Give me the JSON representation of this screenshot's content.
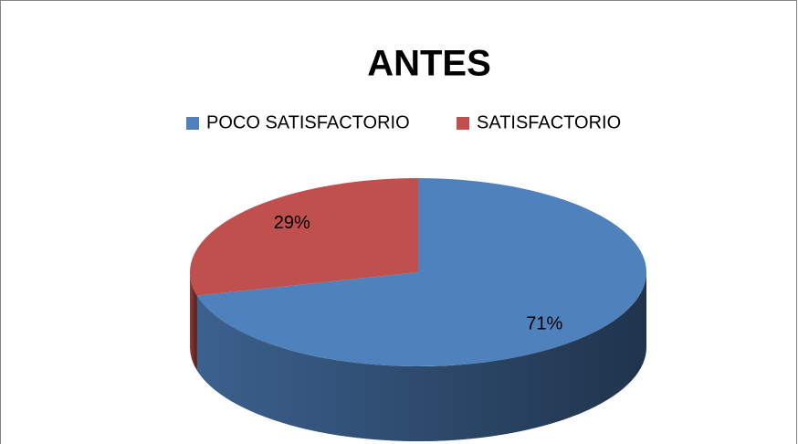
{
  "chart_data": {
    "type": "pie",
    "title": "ANTES",
    "categories": [
      "POCO SATISFACTORIO",
      "SATISFACTORIO"
    ],
    "values": [
      71,
      29
    ],
    "value_labels": [
      "71%",
      "29%"
    ],
    "colors": [
      "#4f81bd",
      "#c0504d"
    ],
    "legend": "top"
  }
}
